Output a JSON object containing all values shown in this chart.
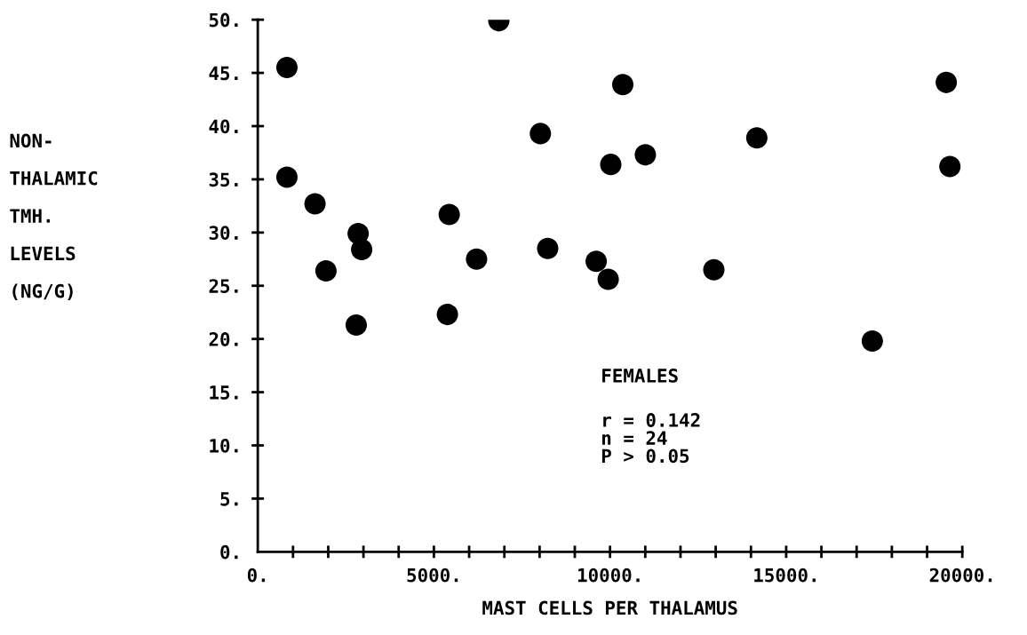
{
  "chart_data": {
    "type": "scatter",
    "xlabel": "MAST CELLS PER THALAMUS",
    "ylabel": "NON-\nTHALAMIC\nTMH.\nLEVELS\n(NG/G)",
    "x": [
      828,
      828,
      1625,
      1936,
      2850,
      2950,
      2795,
      5435,
      5383,
      6211,
      6843,
      8023,
      8230,
      9607,
      10362,
      10021,
      11003,
      9948,
      12947,
      14167,
      17446,
      19545,
      19648
    ],
    "values": [
      45.5,
      35.2,
      32.7,
      26.4,
      29.9,
      28.4,
      21.3,
      31.7,
      22.3,
      27.5,
      49.9,
      39.3,
      28.5,
      27.3,
      43.9,
      36.4,
      37.3,
      25.6,
      26.5,
      38.9,
      19.8,
      44.1,
      36.2
    ],
    "color": "#000000",
    "marker": "circle",
    "grid": false,
    "legend": false,
    "xlim": [
      0,
      20000
    ],
    "ylim": [
      0,
      50
    ],
    "xticks": [
      {
        "value": 0,
        "label": "0."
      },
      {
        "value": 1000,
        "label": null
      },
      {
        "value": 2000,
        "label": null
      },
      {
        "value": 3000,
        "label": null
      },
      {
        "value": 4000,
        "label": null
      },
      {
        "value": 5000,
        "label": "5000."
      },
      {
        "value": 6000,
        "label": null
      },
      {
        "value": 7000,
        "label": null
      },
      {
        "value": 8000,
        "label": null
      },
      {
        "value": 9000,
        "label": null
      },
      {
        "value": 10000,
        "label": "10000."
      },
      {
        "value": 11000,
        "label": null
      },
      {
        "value": 12000,
        "label": null
      },
      {
        "value": 13000,
        "label": null
      },
      {
        "value": 14000,
        "label": null
      },
      {
        "value": 15000,
        "label": "15000."
      },
      {
        "value": 16000,
        "label": null
      },
      {
        "value": 17000,
        "label": null
      },
      {
        "value": 18000,
        "label": null
      },
      {
        "value": 19000,
        "label": null
      },
      {
        "value": 20000,
        "label": "20000."
      }
    ],
    "yticks": [
      {
        "value": 0,
        "label": "0."
      },
      {
        "value": 5,
        "label": "5."
      },
      {
        "value": 10,
        "label": "10."
      },
      {
        "value": 15,
        "label": "15."
      },
      {
        "value": 20,
        "label": "20."
      },
      {
        "value": 25,
        "label": "25."
      },
      {
        "value": 30,
        "label": "30."
      },
      {
        "value": 35,
        "label": "35."
      },
      {
        "value": 40,
        "label": "40."
      },
      {
        "value": 45,
        "label": "45."
      },
      {
        "value": 50,
        "label": "50."
      }
    ],
    "annotations": [
      "FEMALES",
      "r = 0.142\nn = 24\nP > 0.05"
    ]
  }
}
